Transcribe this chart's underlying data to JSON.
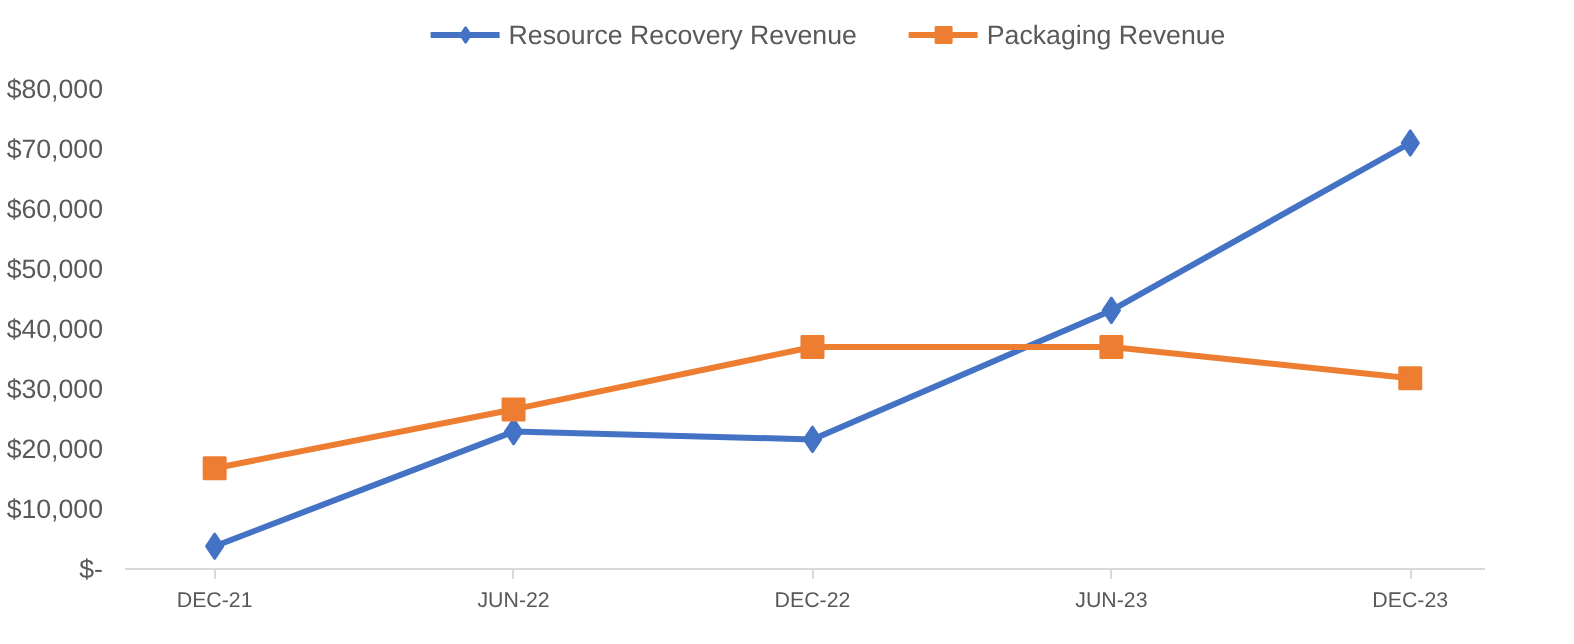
{
  "chart_data": {
    "type": "line",
    "categories": [
      "DEC-21",
      "JUN-22",
      "DEC-22",
      "JUN-23",
      "DEC-23"
    ],
    "series": [
      {
        "name": "Resource Recovery Revenue",
        "color": "#4472c4",
        "marker": "diamond",
        "values": [
          3800,
          22900,
          21600,
          43100,
          71000
        ]
      },
      {
        "name": "Packaging Revenue",
        "color": "#ed7d31",
        "marker": "square",
        "values": [
          16800,
          26600,
          37000,
          37000,
          31800
        ]
      }
    ],
    "ylim": [
      0,
      80000
    ],
    "yticks": [
      {
        "value": 0,
        "label": "$-"
      },
      {
        "value": 10000,
        "label": "$10,000"
      },
      {
        "value": 20000,
        "label": "$20,000"
      },
      {
        "value": 30000,
        "label": "$30,000"
      },
      {
        "value": 40000,
        "label": "$40,000"
      },
      {
        "value": 50000,
        "label": "$50,000"
      },
      {
        "value": 60000,
        "label": "$60,000"
      },
      {
        "value": 70000,
        "label": "$70,000"
      },
      {
        "value": 80000,
        "label": "$80,000"
      }
    ],
    "grid": false,
    "legend": "top",
    "line_style": "solid"
  }
}
